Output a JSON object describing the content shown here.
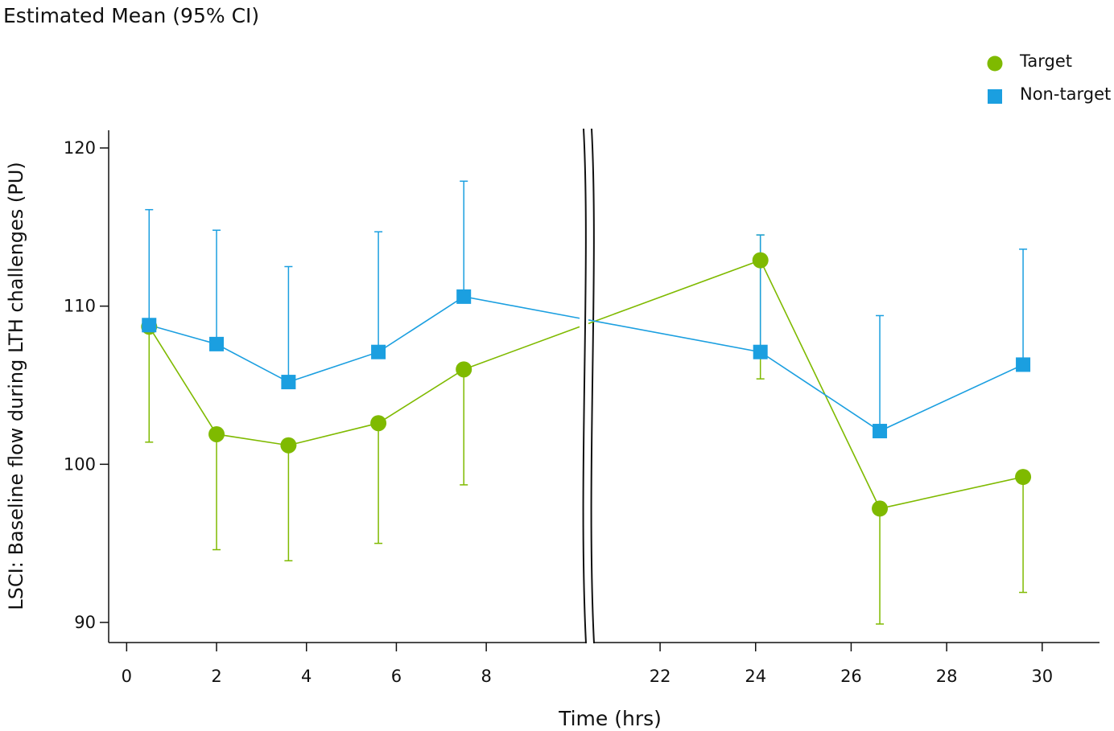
{
  "chart_data": {
    "type": "line",
    "title": "Estimated Mean (95% CI)",
    "xlabel": "Time (hrs)",
    "ylabel": "LSCI: Baseline flow during LTH challenges (PU)",
    "x_ticks_left": [
      0,
      2,
      4,
      6,
      8
    ],
    "x_ticks_right": [
      22,
      24,
      26,
      28,
      30
    ],
    "y_ticks": [
      90,
      100,
      110,
      120
    ],
    "ylim": [
      88.8,
      121.1
    ],
    "xlim_left": [
      -0.4,
      10.2
    ],
    "xlim_right": [
      20.6,
      31.2
    ],
    "axis_break": true,
    "grid": false,
    "legend_position": "top-right",
    "series": [
      {
        "name": "Target",
        "marker": "circle",
        "color": "#7fba00",
        "x": [
          0.5,
          2.0,
          3.6,
          5.6,
          7.5,
          24.1,
          26.6,
          29.6
        ],
        "y": [
          108.7,
          101.9,
          101.2,
          102.6,
          106.0,
          112.9,
          97.2,
          99.2
        ],
        "ci_lower": [
          101.4,
          94.6,
          93.9,
          95.0,
          98.7,
          105.4,
          89.9,
          91.9
        ],
        "ci_upper": [
          108.7,
          101.9,
          101.2,
          102.6,
          106.0,
          114.5,
          97.2,
          99.2
        ]
      },
      {
        "name": "Non-target",
        "marker": "square",
        "color": "#1b9fe0",
        "x": [
          0.5,
          2.0,
          3.6,
          5.6,
          7.5,
          24.1,
          26.6,
          29.6
        ],
        "y": [
          108.8,
          107.6,
          105.2,
          107.1,
          110.6,
          107.1,
          102.1,
          106.3
        ],
        "ci_lower": [
          108.8,
          107.6,
          105.2,
          107.1,
          110.6,
          107.1,
          102.1,
          106.3
        ],
        "ci_upper": [
          116.1,
          114.8,
          112.5,
          114.7,
          117.9,
          114.5,
          109.4,
          113.6
        ]
      }
    ]
  }
}
